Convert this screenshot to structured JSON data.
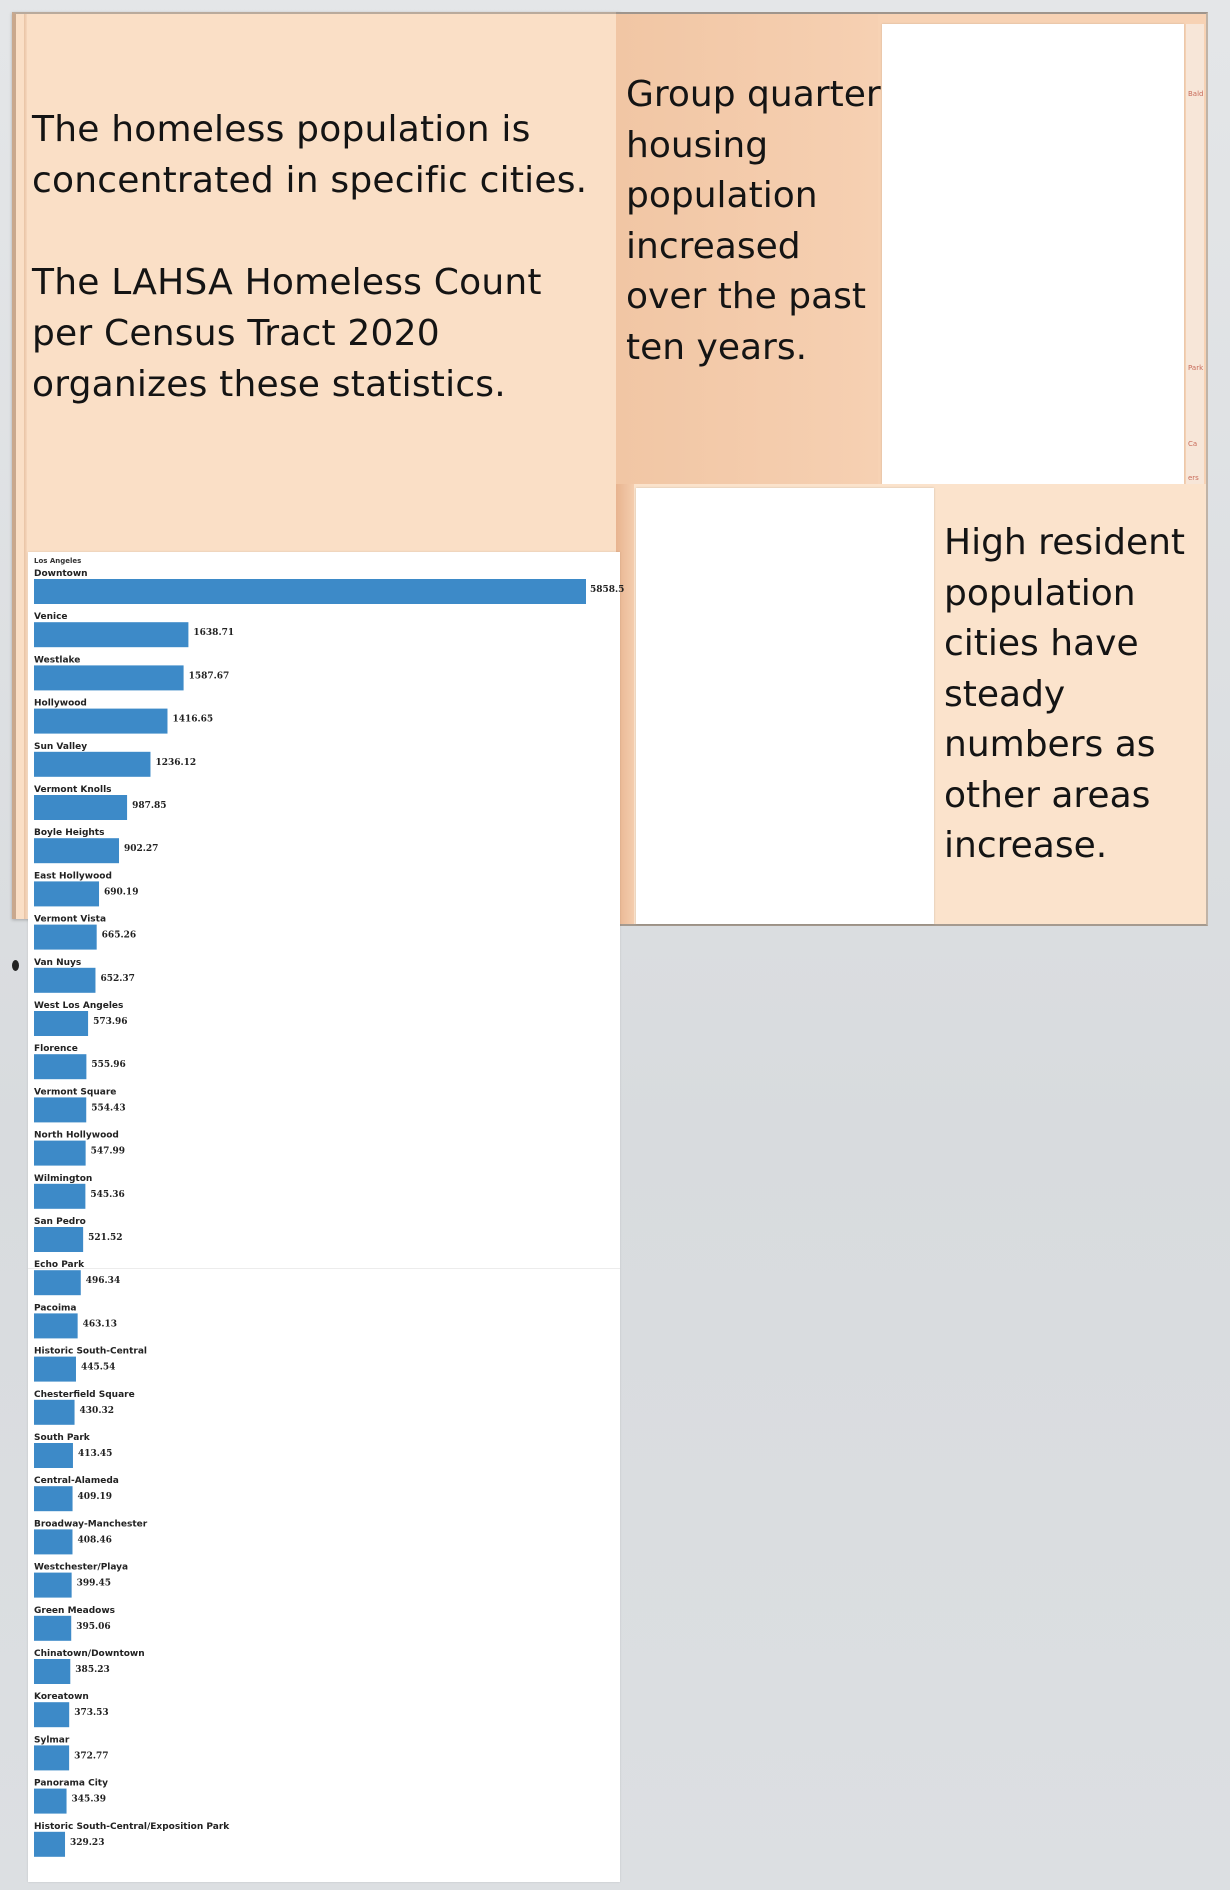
{
  "panels": {
    "intro": {
      "line1": "The homeless population is concentrated in specific cities.",
      "line2": "The LAHSA Homeless Count per Census Tract 2020 organizes these statistics."
    },
    "group_quarters": {
      "text": "Group quarter housing population increased over the past ten years."
    },
    "high_resident": {
      "text": "High resident population cities have steady numbers as other areas increase."
    }
  },
  "chart_data": {
    "type": "bar",
    "orientation": "horizontal",
    "title": "Los Angeles",
    "categories": [
      "Downtown",
      "Venice",
      "Westlake",
      "Hollywood",
      "Sun Valley",
      "Vermont Knolls",
      "Boyle Heights",
      "East Hollywood",
      "Vermont Vista",
      "Van Nuys",
      "West Los Angeles",
      "Florence",
      "Vermont Square",
      "North Hollywood",
      "Wilmington",
      "San Pedro",
      "Echo Park",
      "Pacoima",
      "Historic South-Central",
      "Chesterfield Square",
      "South Park",
      "Central-Alameda",
      "Broadway-Manchester",
      "Westchester/Playa",
      "Green Meadows",
      "Chinatown/Downtown",
      "Koreatown",
      "Sylmar",
      "Panorama City",
      "Historic South-Central/Exposition Park"
    ],
    "values": [
      5858.5,
      1638.71,
      1587.67,
      1416.65,
      1236.12,
      987.85,
      902.27,
      690.19,
      665.26,
      652.37,
      573.96,
      555.96,
      554.43,
      547.99,
      545.36,
      521.52,
      496.34,
      463.13,
      445.54,
      430.32,
      413.45,
      409.19,
      408.46,
      399.45,
      395.06,
      385.23,
      373.53,
      372.77,
      345.39,
      329.23
    ],
    "value_labels": [
      "5858.5",
      "1638.71",
      "1587.67",
      "1416.65",
      "1236.12",
      "987.85",
      "902.27",
      "690.19",
      "665.26",
      "652.37",
      "573.96",
      "555.96",
      "554.43",
      "547.99",
      "545.36",
      "521.52",
      "496.34",
      "463.13",
      "445.54",
      "430.32",
      "413.45",
      "409.19",
      "408.46",
      "399.45",
      "395.06",
      "385.23",
      "373.53",
      "372.77",
      "345.39",
      "329.23"
    ],
    "bar_color": "#3d8ac8",
    "xlim": [
      0,
      5858.5
    ],
    "grid": false,
    "legend": false
  },
  "decor": {
    "edge_labels": [
      "Bald",
      "Park",
      "Ca",
      "ers"
    ]
  }
}
